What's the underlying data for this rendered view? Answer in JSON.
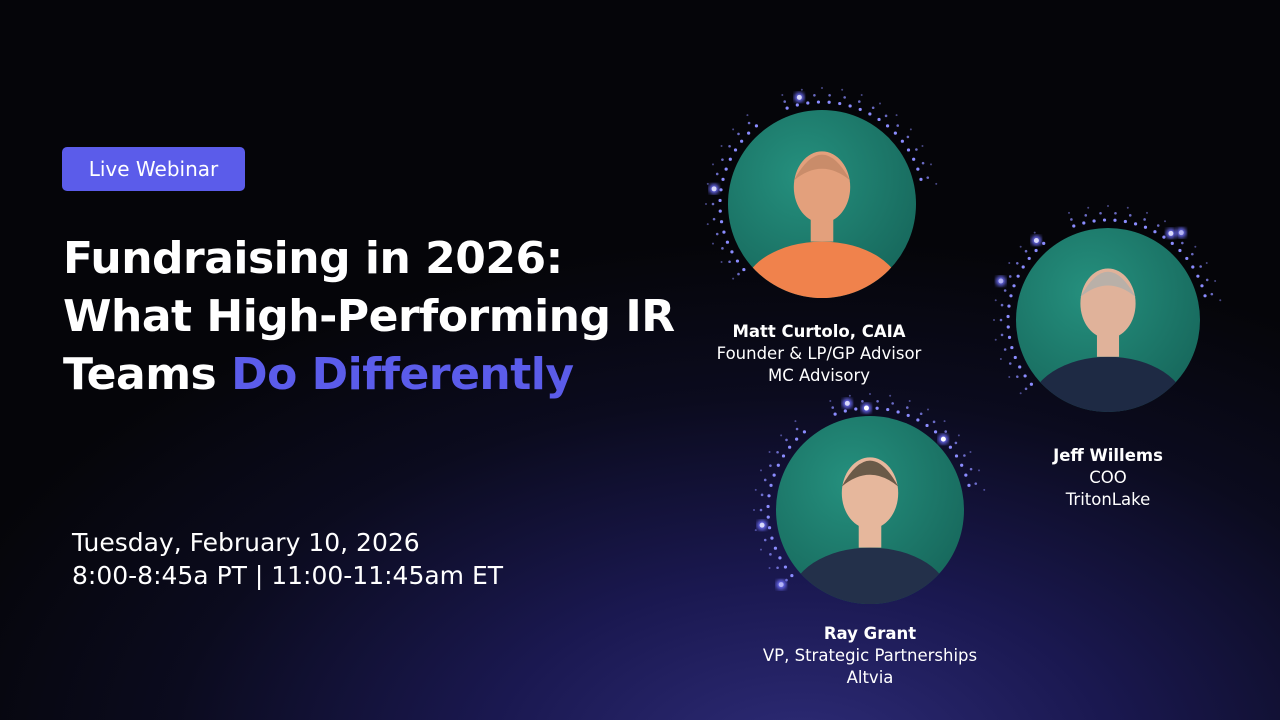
{
  "badge": {
    "label": "Live Webinar"
  },
  "title": {
    "line1": "Fundraising in 2026:",
    "line2": "What High-Performing IR",
    "line3_plain": "Teams ",
    "line3_accent": "Do Differently"
  },
  "event": {
    "date": "Tuesday, February 10, 2026",
    "time": "8:00-8:45a PT | 11:00-11:45am ET"
  },
  "speakers": [
    {
      "name": "Matt Curtolo, CAIA",
      "role": "Founder & LP/GP Advisor",
      "company": "MC Advisory"
    },
    {
      "name": "Jeff Willems",
      "role": "COO",
      "company": "TritonLake"
    },
    {
      "name": "Ray Grant",
      "role": "VP, Strategic Partnerships",
      "company": "Altvia"
    }
  ],
  "colors": {
    "accent": "#5b5cea",
    "photo_bg": "#1f7f70",
    "dots": "#8b8cff"
  }
}
